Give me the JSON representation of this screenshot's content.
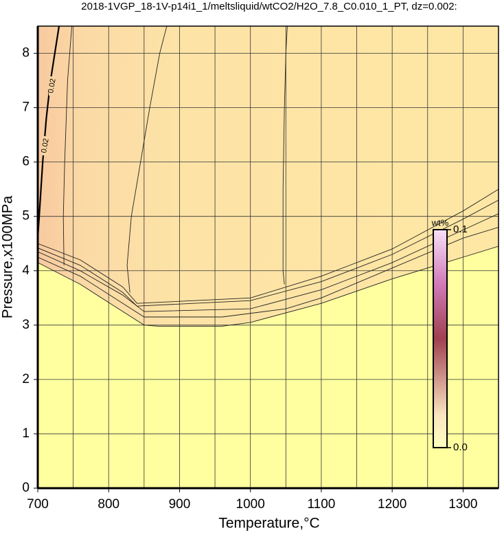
{
  "chart_data": {
    "type": "contour",
    "title": "2018-1VGP_18-1V-p14i1_1/meltsliquid/wtCO2/H2O_7.8_C0.010_1_PT, dz=0.002:",
    "xlabel": "Temperature,°C",
    "ylabel": "Pressure,x100MPa",
    "xlim": [
      700,
      1350
    ],
    "ylim": [
      0,
      8.5
    ],
    "xticks": [
      700,
      800,
      900,
      1000,
      1100,
      1200,
      1300
    ],
    "xminor_ticks": [
      750,
      850,
      950,
      1050,
      1150,
      1250
    ],
    "yticks": [
      0,
      1,
      2,
      3,
      4,
      5,
      6,
      7,
      8
    ],
    "grid": true,
    "contours": [
      {
        "x": [
          700,
          760,
          820,
          850,
          870,
          960,
          1000,
          1100,
          1200,
          1300,
          1350
        ],
        "y": [
          4.15,
          3.75,
          3.25,
          3.0,
          2.98,
          2.98,
          3.05,
          3.4,
          3.85,
          4.25,
          4.45
        ]
      },
      {
        "x": [
          700,
          760,
          820,
          850,
          960,
          1050,
          1100,
          1200,
          1300,
          1350
        ],
        "y": [
          4.25,
          3.9,
          3.4,
          3.15,
          3.15,
          3.3,
          3.5,
          4.05,
          4.6,
          4.8
        ]
      },
      {
        "x": [
          700,
          760,
          820,
          850,
          1000,
          1100,
          1200,
          1300,
          1350
        ],
        "y": [
          4.35,
          4.0,
          3.55,
          3.25,
          3.3,
          3.65,
          4.15,
          4.75,
          5.05
        ]
      },
      {
        "x": [
          700,
          760,
          820,
          840,
          1000,
          1100,
          1200,
          1300,
          1350
        ],
        "y": [
          4.42,
          4.1,
          3.6,
          3.35,
          3.45,
          3.8,
          4.3,
          4.95,
          5.3
        ]
      },
      {
        "x": [
          700,
          760,
          820,
          840,
          1000,
          1100,
          1200,
          1300,
          1350
        ],
        "y": [
          4.5,
          4.2,
          3.7,
          3.4,
          3.5,
          3.9,
          4.4,
          5.1,
          5.5
        ]
      },
      {
        "x": [
          737,
          736,
          738,
          742,
          748
        ],
        "y": [
          4.1,
          5.0,
          6.0,
          7.5,
          8.5
        ]
      },
      {
        "x": [
          830,
          826,
          832,
          845,
          858,
          872,
          882
        ],
        "y": [
          3.6,
          4.1,
          5.0,
          6.0,
          7.0,
          8.0,
          8.5
        ]
      },
      {
        "x": [
          1048,
          1046,
          1046,
          1048,
          1050,
          1052
        ],
        "y": [
          3.75,
          4.0,
          5.5,
          7.0,
          8.0,
          8.5
        ]
      }
    ],
    "main_contour": {
      "label": "0.02",
      "x": [
        700,
        703,
        707,
        712,
        718,
        724,
        730
      ],
      "y": [
        4.6,
        5.2,
        6.0,
        6.8,
        7.5,
        8.0,
        8.5
      ]
    },
    "colorbar": {
      "label": "wt%",
      "clim": [
        0,
        0.1
      ],
      "ticks": [
        {
          "value": 0,
          "label": "0.0"
        },
        {
          "value": 0.1,
          "label": "0.1"
        }
      ]
    }
  }
}
